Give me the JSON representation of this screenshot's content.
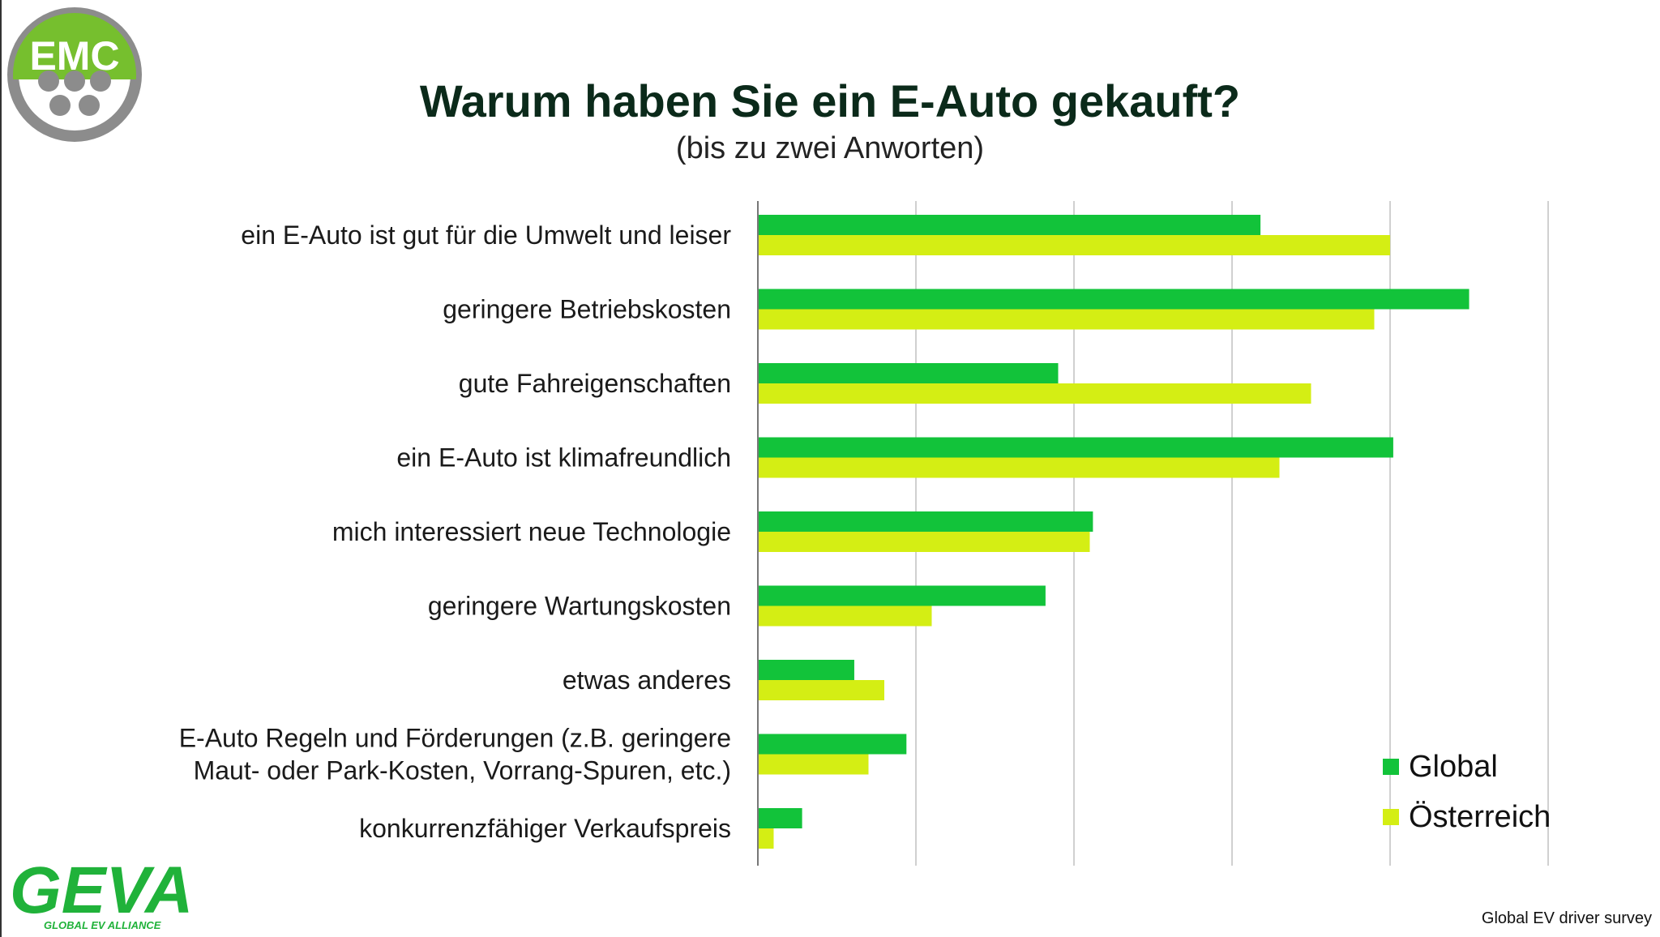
{
  "header": {
    "title": "Warum haben Sie ein E-Auto gekauft?",
    "subtitle": "(bis zu zwei Anworten)"
  },
  "logos": {
    "emc_text": "EMC",
    "geva_text": "GEVA",
    "geva_tagline": "GLOBAL EV ALLIANCE"
  },
  "source": "Global EV driver survey",
  "colors": {
    "global": "#12c33a",
    "oesterreich": "#d4ee14",
    "emc_green": "#76bf2e",
    "emc_gray": "#8c8c8c",
    "geva_green": "#20b23a",
    "grid": "#d0d0d0"
  },
  "chart_data": {
    "type": "bar",
    "orientation": "horizontal",
    "title": "Warum haben Sie ein E-Auto gekauft?",
    "subtitle": "(bis zu zwei Anworten)",
    "categories": [
      [
        "ein E-Auto ist gut für die Umwelt und leiser"
      ],
      [
        "geringere Betriebskosten"
      ],
      [
        "gute Fahreigenschaften"
      ],
      [
        "ein E-Auto ist klimafreundlich"
      ],
      [
        "mich interessiert neue Technologie"
      ],
      [
        "geringere Wartungskosten"
      ],
      [
        "etwas anderes"
      ],
      [
        "E-Auto Regeln und Förderungen (z.B. geringere",
        "Maut- oder Park-Kosten, Vorrang-Spuren, etc.)"
      ],
      [
        "konkurrenzfähiger Verkaufspreis"
      ]
    ],
    "series": [
      {
        "name": "Global",
        "color": "#12c33a",
        "values": [
          31.8,
          45,
          19,
          40.2,
          21.2,
          18.2,
          6.1,
          9.4,
          2.8
        ]
      },
      {
        "name": "Österreich",
        "color": "#d4ee14",
        "values": [
          40,
          39,
          35,
          33,
          21,
          11,
          8,
          7,
          1
        ]
      }
    ],
    "xlim": [
      0,
      50
    ],
    "grid_step": 10,
    "grid": true,
    "legend_position": "bottom-right"
  }
}
